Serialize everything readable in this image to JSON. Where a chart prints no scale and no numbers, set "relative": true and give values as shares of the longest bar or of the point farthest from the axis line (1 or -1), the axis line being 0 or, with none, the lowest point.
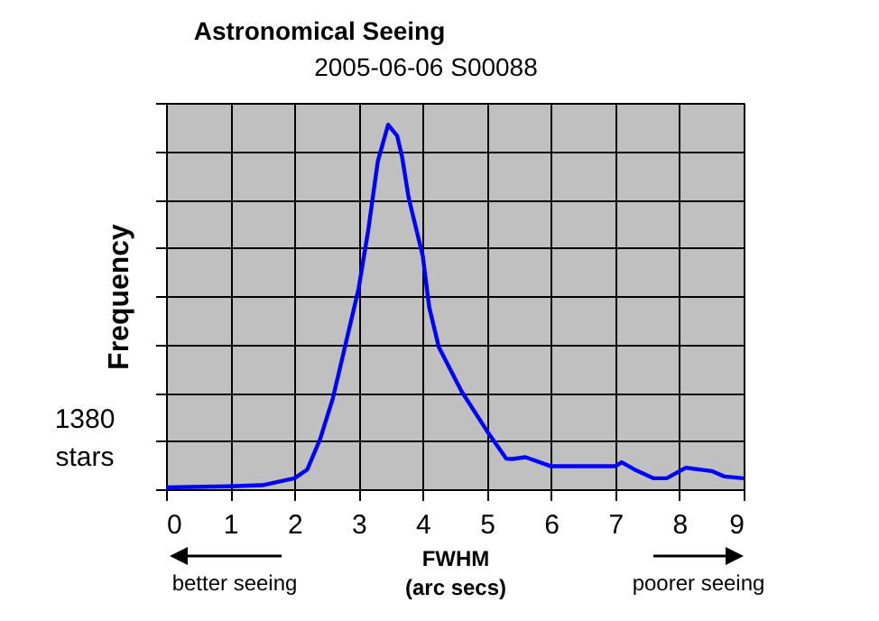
{
  "chart_data": {
    "type": "line",
    "title": "Astronomical Seeing",
    "subtitle": "2005-06-06 S00088",
    "xlabel": "FWHM (arc secs)",
    "ylabel": "Frequency",
    "annotations": [
      "1380 stars",
      "better seeing",
      "poorer seeing"
    ],
    "relative": true,
    "xlim": [
      0,
      9
    ],
    "xticks": [
      0,
      1,
      2,
      3,
      4,
      5,
      6,
      7,
      8,
      9
    ],
    "grid": true,
    "line_style": "solid",
    "x": [
      0,
      1,
      1.5,
      2,
      2.2,
      2.4,
      2.6,
      2.8,
      3.0,
      3.15,
      3.3,
      3.46,
      3.6,
      3.68,
      3.78,
      4.0,
      4.1,
      4.25,
      4.6,
      5.0,
      5.3,
      5.4,
      5.6,
      6.0,
      7.0,
      7.1,
      7.3,
      7.6,
      7.8,
      8.1,
      8.5,
      8.7,
      9.0
    ],
    "series": [
      {
        "color": "#0000ff",
        "values": [
          0.005,
          0.008,
          0.011,
          0.03,
          0.054,
          0.137,
          0.25,
          0.4,
          0.55,
          0.71,
          0.9,
          1.0,
          0.97,
          0.91,
          0.8,
          0.64,
          0.5,
          0.39,
          0.27,
          0.16,
          0.084,
          0.083,
          0.088,
          0.063,
          0.063,
          0.074,
          0.054,
          0.03,
          0.03,
          0.059,
          0.05,
          0.035,
          0.03
        ]
      }
    ]
  }
}
